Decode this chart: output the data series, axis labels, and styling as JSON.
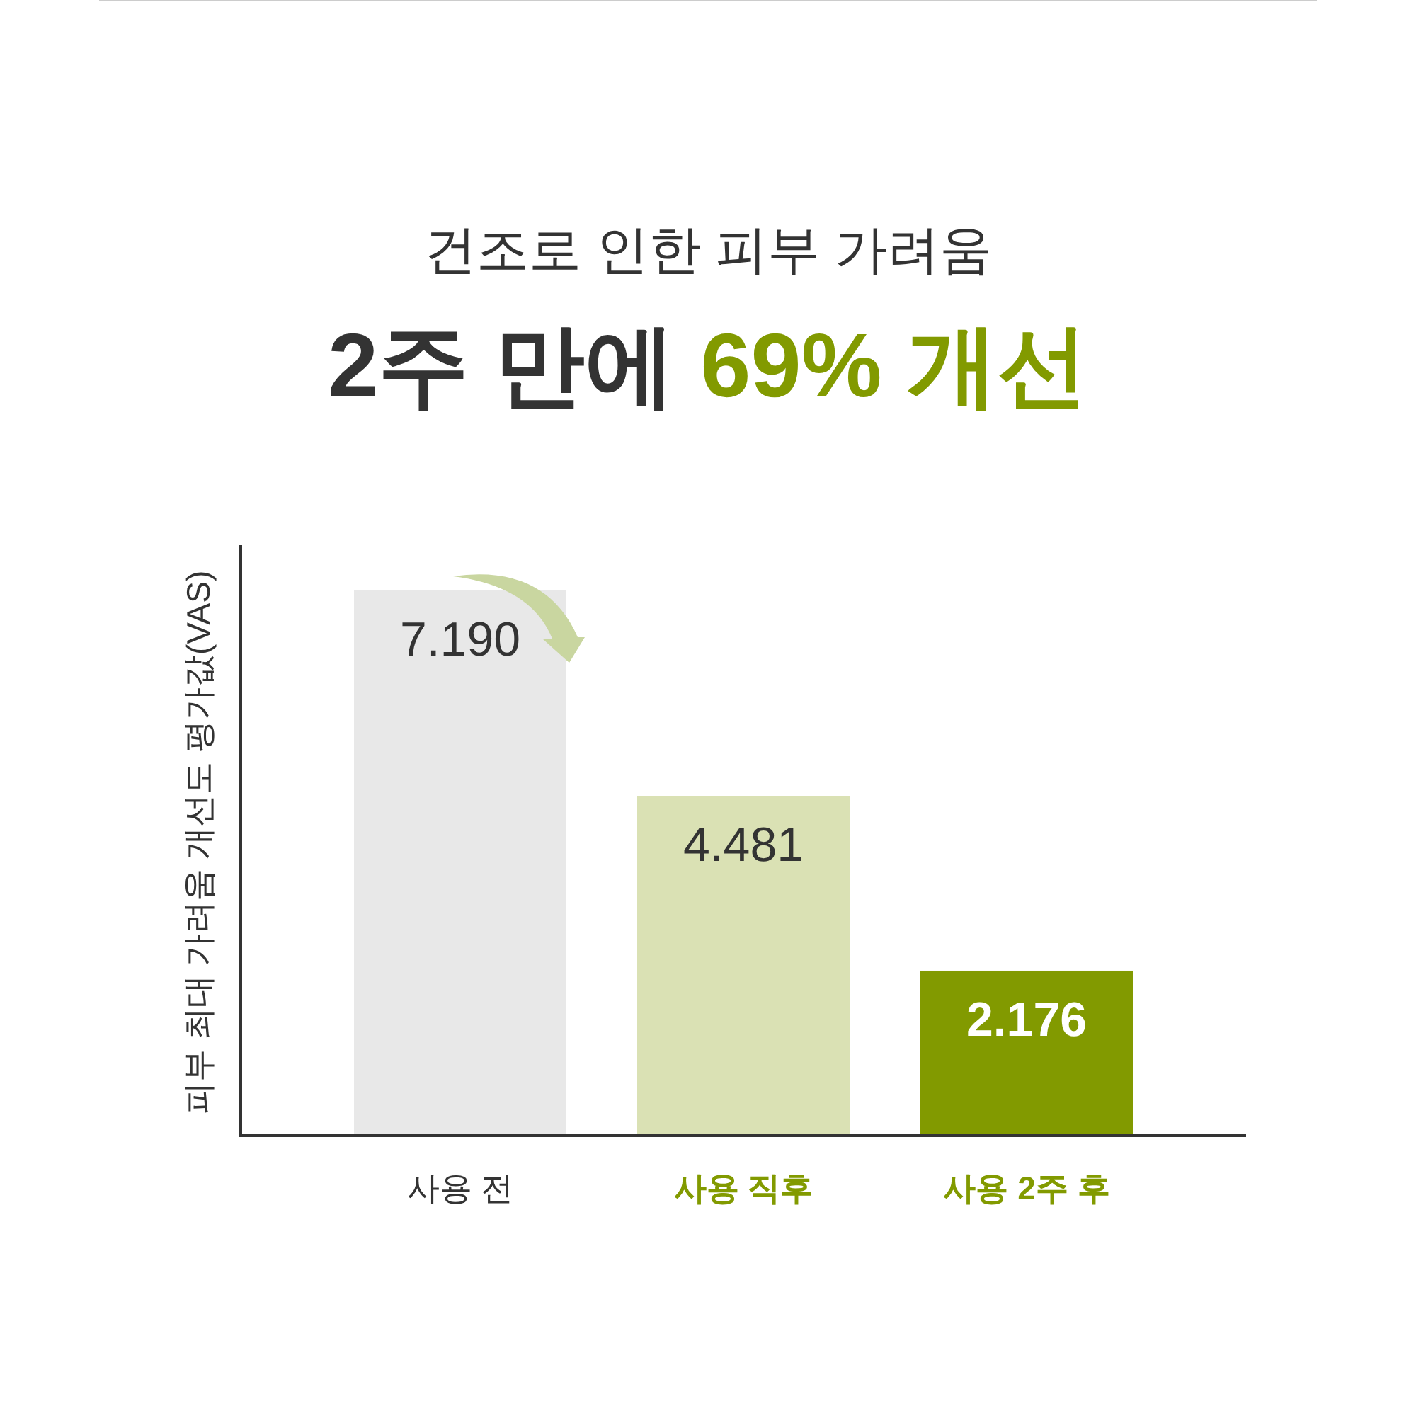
{
  "chart_data": {
    "type": "bar",
    "title": "건조로 인한 피부 가려움",
    "subtitle": "2주 만에 **69% 개선**",
    "ylabel": "피부 최대 가려움 개선도 평가값(VAS)",
    "categories": [
      "사용 전",
      "사용 직후",
      "사용 2주 후"
    ],
    "values": [
      7.19,
      4.481,
      2.176
    ],
    "colors": [
      "#e8e8e8",
      "#dae1b4",
      "#829a00"
    ],
    "value_labels": [
      "7.190",
      "4.481",
      "2.176"
    ]
  }
}
